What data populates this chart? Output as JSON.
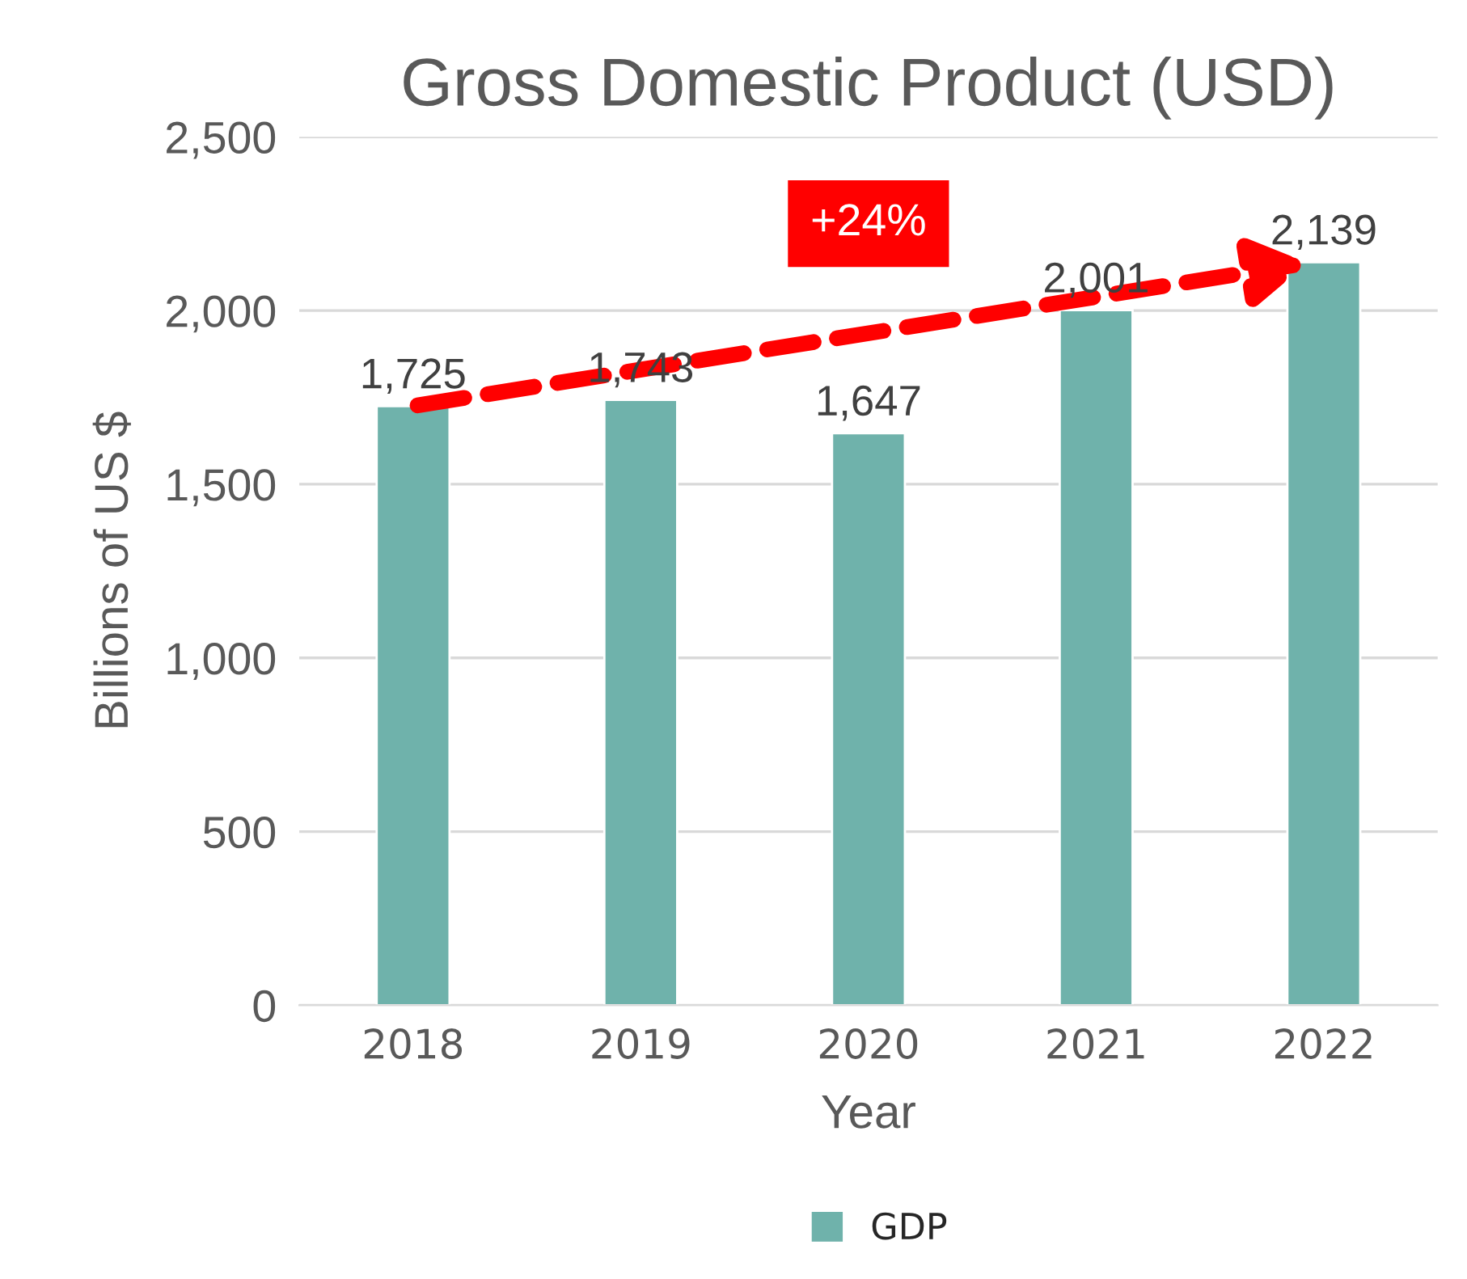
{
  "chart_data": {
    "type": "bar",
    "title": "Gross Domestic Product (USD)",
    "xlabel": "Year",
    "ylabel": "Billions of US $",
    "categories": [
      "2018",
      "2019",
      "2020",
      "2021",
      "2022"
    ],
    "series": [
      {
        "name": "GDP",
        "color": "#6fb2ab",
        "values": [
          1725,
          1743,
          1647,
          2001,
          2139
        ],
        "value_labels": [
          "1,725",
          "1,743",
          "1,647",
          "2,001",
          "2,139"
        ]
      }
    ],
    "ylim": [
      0,
      2500
    ],
    "yticks": [
      {
        "value": 0,
        "label": "0"
      },
      {
        "value": 500,
        "label": "500"
      },
      {
        "value": 1000,
        "label": "1,000"
      },
      {
        "value": 1500,
        "label": "1,500"
      },
      {
        "value": 2000,
        "label": "2,000"
      },
      {
        "value": 2500,
        "label": "2,500"
      }
    ],
    "grid": "y",
    "legend": "bottom",
    "annotations": [
      "+24%"
    ]
  }
}
